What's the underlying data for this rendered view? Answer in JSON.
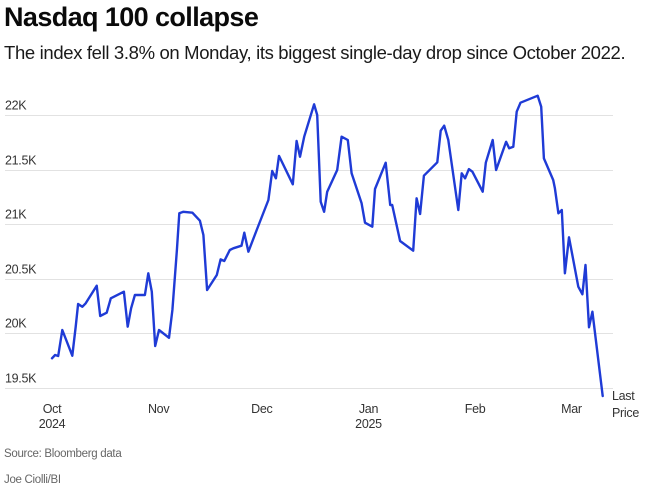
{
  "chart_data": {
    "type": "line",
    "title": "Nasdaq 100 collapse",
    "subtitle": "The index fell 3.8% on Monday, its biggest single-day drop since October 2022.",
    "xlabel": "",
    "ylabel": "",
    "x_unit": "days since Oct 1, 2024",
    "xlim": [
      -14,
      163
    ],
    "ylim": [
      19400,
      22200
    ],
    "grid": true,
    "y_ticks": [
      {
        "value": 19500,
        "label": "19.5K"
      },
      {
        "value": 20000,
        "label": "20K"
      },
      {
        "value": 20500,
        "label": "20.5K"
      },
      {
        "value": 21000,
        "label": "21K"
      },
      {
        "value": 21500,
        "label": "21.5K"
      },
      {
        "value": 22000,
        "label": "22K"
      }
    ],
    "x_ticks": [
      {
        "value": 0,
        "label": "Oct",
        "sublabel": "2024"
      },
      {
        "value": 31,
        "label": "Nov",
        "sublabel": ""
      },
      {
        "value": 61,
        "label": "Dec",
        "sublabel": ""
      },
      {
        "value": 92,
        "label": "Jan",
        "sublabel": "2025"
      },
      {
        "value": 123,
        "label": "Feb",
        "sublabel": ""
      },
      {
        "value": 151,
        "label": "Mar",
        "sublabel": ""
      }
    ],
    "series": [
      {
        "name": "Last Price",
        "color": "#1f3bd6",
        "end_label": [
          "Last",
          "Price"
        ],
        "x": [
          0,
          0.9,
          1.8,
          3,
          5.9,
          6.9,
          7.6,
          8.8,
          9.8,
          13,
          14,
          15.9,
          17.1,
          20.9,
          22,
          23,
          24.1,
          27,
          28,
          29,
          30,
          31.1,
          34,
          35,
          36.3,
          37,
          38.2,
          40.8,
          43,
          44,
          45.1,
          47.9,
          49,
          50.1,
          51.7,
          52.7,
          55.1,
          55.9,
          57.1,
          59.5,
          62.9,
          64,
          65.1,
          66,
          70,
          71.1,
          72.1,
          73.3,
          76.2,
          77.1,
          78.1,
          79.1,
          80,
          82.9,
          84.2,
          86,
          87.1,
          90,
          91,
          93.1,
          93.9,
          97,
          98.3,
          98.9,
          101.2,
          105,
          106,
          107,
          108.1,
          112,
          113,
          114,
          115.2,
          118.1,
          119.1,
          120.1,
          121.2,
          122.2,
          125.2,
          126.1,
          128.1,
          129.1,
          132,
          132.9,
          134.1,
          135.1,
          136.2,
          141.2,
          142.2,
          143,
          145.7,
          146.2,
          147.2,
          148.2,
          149.1,
          150.3,
          153,
          154.2,
          155.1,
          156.1,
          157.1,
          160.1
        ],
        "values": [
          19772,
          19802,
          19793,
          20031,
          19796,
          20061,
          20269,
          20244,
          20276,
          20437,
          20159,
          20190,
          20321,
          20382,
          20061,
          20230,
          20352,
          20352,
          20550,
          20382,
          19885,
          20031,
          19960,
          20214,
          20764,
          21100,
          21114,
          21105,
          21032,
          20901,
          20397,
          20535,
          20678,
          20663,
          20764,
          20779,
          20803,
          20922,
          20748,
          20947,
          21222,
          21487,
          21420,
          21625,
          21365,
          21762,
          21618,
          21801,
          22098,
          22000,
          21206,
          21114,
          21298,
          21496,
          21801,
          21771,
          21466,
          21191,
          21014,
          20977,
          21322,
          21563,
          21176,
          21176,
          20846,
          20757,
          21237,
          21093,
          21444,
          21567,
          21856,
          21902,
          21771,
          21130,
          21466,
          21420,
          21505,
          21481,
          21298,
          21563,
          21771,
          21496,
          21755,
          21695,
          21710,
          22030,
          22113,
          22177,
          22076,
          21603,
          21405,
          21329,
          21100,
          21130,
          20550,
          20880,
          20428,
          20358,
          20626,
          20056,
          20199,
          19427
        ]
      }
    ],
    "source": "Source: Bloomberg data",
    "credit": "Joe Ciolli/BI"
  }
}
